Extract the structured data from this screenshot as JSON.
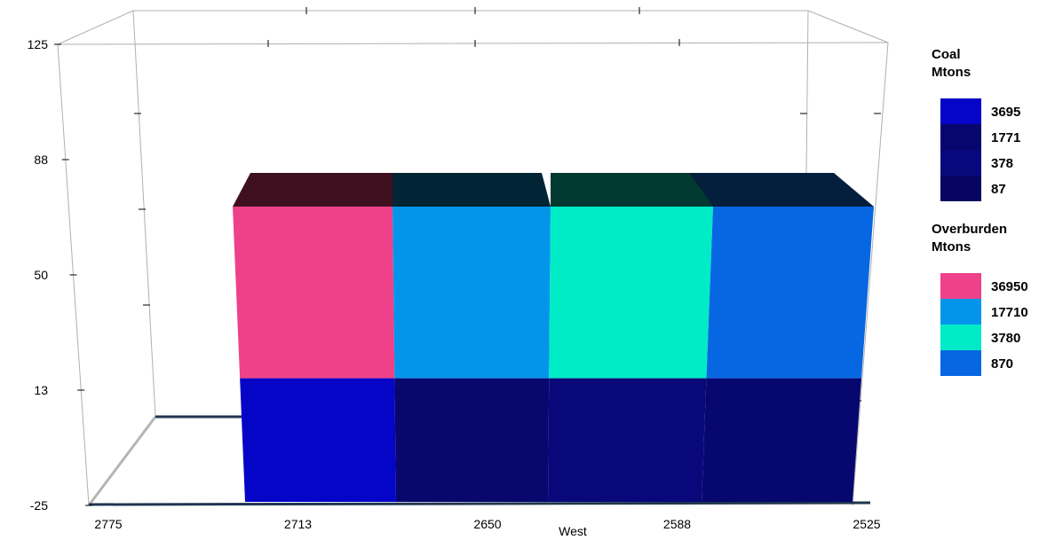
{
  "chart_data": {
    "type": "bar",
    "subtype": "3d-stacked-bar",
    "xlabel": "West",
    "x_ticks": [
      "2775",
      "2713",
      "2650",
      "2588",
      "2525"
    ],
    "y_ticks": [
      "125",
      "88",
      "50",
      "13",
      "-25"
    ],
    "ylim": [
      -25,
      125
    ],
    "categories": [
      "2713",
      "2650",
      "2588",
      "2525"
    ],
    "series": [
      {
        "name": "Coal Mtons",
        "range": [
          -25,
          25
        ],
        "colors": [
          "#0505c8",
          "#07076e",
          "#08087a",
          "#070770"
        ]
      },
      {
        "name": "Overburden Mtons",
        "range": [
          25,
          100
        ],
        "colors": [
          "#ee4189",
          "#0295ea",
          "#00ecc6",
          "#0767e2"
        ]
      }
    ],
    "legend": [
      {
        "title_lines": [
          "Coal",
          "Mtons"
        ],
        "entries": [
          {
            "label": "3695",
            "color": "#0505c8"
          },
          {
            "label": "1771",
            "color": "#06066e"
          },
          {
            "label": "378",
            "color": "#08087c"
          },
          {
            "label": "87",
            "color": "#060662"
          }
        ]
      },
      {
        "title_lines": [
          "Overburden",
          "Mtons"
        ],
        "entries": [
          {
            "label": "36950",
            "color": "#ee4189"
          },
          {
            "label": "17710",
            "color": "#0295ea"
          },
          {
            "label": "3780",
            "color": "#00ecc6"
          },
          {
            "label": "870",
            "color": "#0767e2"
          }
        ]
      }
    ],
    "legend_position": "right",
    "top_face_colors": [
      "#3f1020",
      "#012534",
      "#023a31",
      "#041f3c"
    ],
    "grid": false
  }
}
